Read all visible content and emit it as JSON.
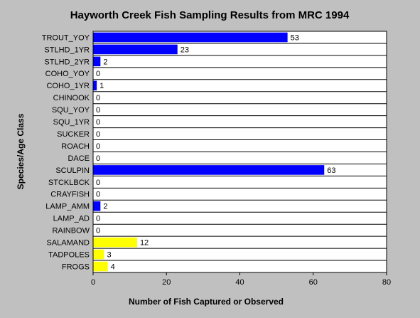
{
  "chart_data": {
    "type": "hbar",
    "title": "Hayworth Creek Fish Sampling Results from MRC 1994",
    "x_label": "Number of Fish Captured or Observed",
    "y_label": "Species/Age Class",
    "categories": [
      "TROUT_YOY",
      "STLHD_1YR",
      "STLHD_2YR",
      "COHO_YOY",
      "COHO_1YR",
      "CHINOOK",
      "SQU_YOY",
      "SQU_1YR",
      "SUCKER",
      "ROACH",
      "DACE",
      "SCULPIN",
      "STCKLBCK",
      "CRAYFISH",
      "LAMP_AMM",
      "LAMP_AD",
      "RAINBOW",
      "SALAMAND",
      "TADPOLES",
      "FROGS"
    ],
    "values": [
      53,
      23,
      2,
      0,
      1,
      0,
      0,
      0,
      0,
      0,
      0,
      63,
      0,
      0,
      2,
      0,
      0,
      12,
      3,
      4
    ],
    "colors": [
      "#0000ff",
      "#0000ff",
      "#0000ff",
      "#0000ff",
      "#0000ff",
      "#0000ff",
      "#0000ff",
      "#0000ff",
      "#0000ff",
      "#0000ff",
      "#0000ff",
      "#0000ff",
      "#0000ff",
      "#0000ff",
      "#0000ff",
      "#0000ff",
      "#0000ff",
      "#ffff00",
      "#ffff00",
      "#ffff00"
    ],
    "xlim": [
      0,
      80
    ],
    "xticks": [
      0,
      20,
      40,
      60,
      80
    ]
  }
}
